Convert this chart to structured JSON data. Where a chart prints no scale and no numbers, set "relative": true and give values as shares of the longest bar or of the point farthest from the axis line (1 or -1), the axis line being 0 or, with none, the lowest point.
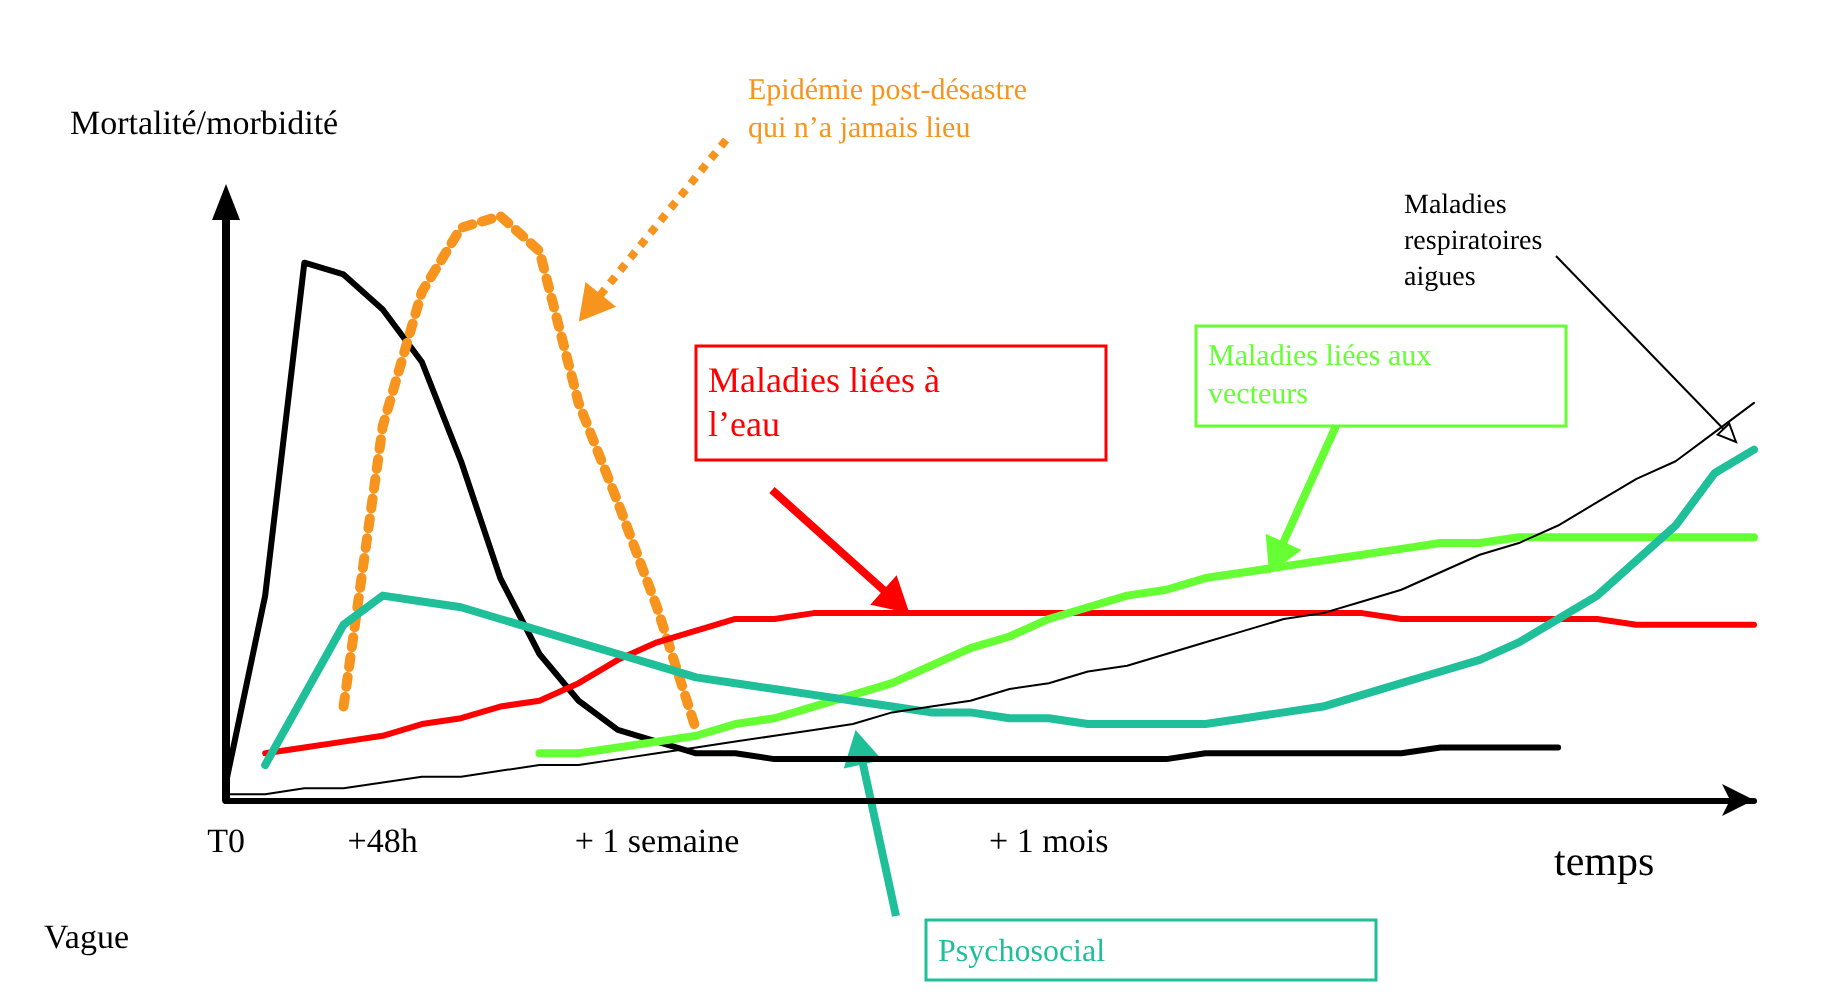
{
  "chart_data": {
    "type": "line",
    "relative": true,
    "ylabel": "Mortalité/morbidité",
    "xlabel": "temps",
    "legend": false,
    "grid": false,
    "marker": "none",
    "categories": [
      "T0",
      null,
      null,
      null,
      "+48h",
      null,
      null,
      null,
      null,
      null,
      null,
      "+ 1 semaine",
      null,
      null,
      null,
      null,
      null,
      null,
      null,
      null,
      null,
      "+ 1 mois",
      null,
      null,
      null,
      null,
      null,
      null,
      null,
      null,
      null,
      null,
      null,
      null,
      null,
      null,
      null,
      null,
      null,
      null
    ],
    "series": [
      {
        "color": "#000000",
        "line_style": "solid",
        "values": [
          0.03,
          0.35,
          0.92,
          0.9,
          0.84,
          0.75,
          0.58,
          0.38,
          0.25,
          0.17,
          0.12,
          0.1,
          0.08,
          0.08,
          0.07,
          0.07,
          0.07,
          0.07,
          0.07,
          0.07,
          0.07,
          0.07,
          0.07,
          0.07,
          0.07,
          0.08,
          0.08,
          0.08,
          0.08,
          0.08,
          0.08,
          0.09,
          0.09,
          0.09,
          0.09,
          null,
          null,
          null,
          null,
          null
        ]
      },
      {
        "name": "Epidémie post-désastre qui n’a jamais lieu",
        "color": "#f7941d",
        "line_style": "dotted",
        "values": [
          null,
          null,
          null,
          0.16,
          0.64,
          0.87,
          0.98,
          1.0,
          0.94,
          0.68,
          0.51,
          0.33,
          0.12,
          null,
          null,
          null,
          null,
          null,
          null,
          null,
          null,
          null,
          null,
          null,
          null,
          null,
          null,
          null,
          null,
          null,
          null,
          null,
          null,
          null,
          null,
          null,
          null,
          null,
          null,
          null
        ]
      },
      {
        "name": "Maladies liées à l’eau",
        "color": "#ff0000",
        "line_style": "solid",
        "values": [
          null,
          0.08,
          0.09,
          0.1,
          0.11,
          0.13,
          0.14,
          0.16,
          0.17,
          0.2,
          0.24,
          0.27,
          0.29,
          0.31,
          0.31,
          0.32,
          0.32,
          0.32,
          0.32,
          0.32,
          0.32,
          0.32,
          0.32,
          0.32,
          0.32,
          0.32,
          0.32,
          0.32,
          0.32,
          0.32,
          0.31,
          0.31,
          0.31,
          0.31,
          0.31,
          0.31,
          0.3,
          0.3,
          0.3,
          0.3
        ]
      },
      {
        "name": "Maladies liées aux vecteurs",
        "color": "#66ff33",
        "line_style": "solid",
        "values": [
          null,
          null,
          null,
          null,
          null,
          null,
          null,
          null,
          0.08,
          0.08,
          0.09,
          0.1,
          0.11,
          0.13,
          0.14,
          0.16,
          0.18,
          0.2,
          0.23,
          0.26,
          0.28,
          0.31,
          0.33,
          0.35,
          0.36,
          0.38,
          0.39,
          0.4,
          0.41,
          0.42,
          0.43,
          0.44,
          0.44,
          0.45,
          0.45,
          0.45,
          0.45,
          0.45,
          0.45,
          0.45
        ]
      },
      {
        "name": "Psychosocial",
        "color": "#1fbf9a",
        "line_style": "solid",
        "values": [
          null,
          0.06,
          0.18,
          0.3,
          0.35,
          0.34,
          0.33,
          0.31,
          0.29,
          0.27,
          0.25,
          0.23,
          0.21,
          0.2,
          0.19,
          0.18,
          0.17,
          0.16,
          0.15,
          0.15,
          0.14,
          0.14,
          0.13,
          0.13,
          0.13,
          0.13,
          0.14,
          0.15,
          0.16,
          0.18,
          0.2,
          0.22,
          0.24,
          0.27,
          0.31,
          0.35,
          0.41,
          0.47,
          0.56,
          0.6
        ]
      },
      {
        "name": "Maladies respiratoires aigues",
        "color": "#000000",
        "line_style": "solid",
        "values": [
          0.01,
          0.01,
          0.02,
          0.02,
          0.03,
          0.04,
          0.04,
          0.05,
          0.06,
          0.06,
          0.07,
          0.08,
          0.09,
          0.1,
          0.11,
          0.12,
          0.13,
          0.15,
          0.16,
          0.17,
          0.19,
          0.2,
          0.22,
          0.23,
          0.25,
          0.27,
          0.29,
          0.31,
          0.32,
          0.34,
          0.36,
          0.39,
          0.42,
          0.44,
          0.47,
          0.51,
          0.55,
          0.58,
          0.63,
          0.68
        ]
      }
    ],
    "annotations": [
      "Vague"
    ]
  }
}
